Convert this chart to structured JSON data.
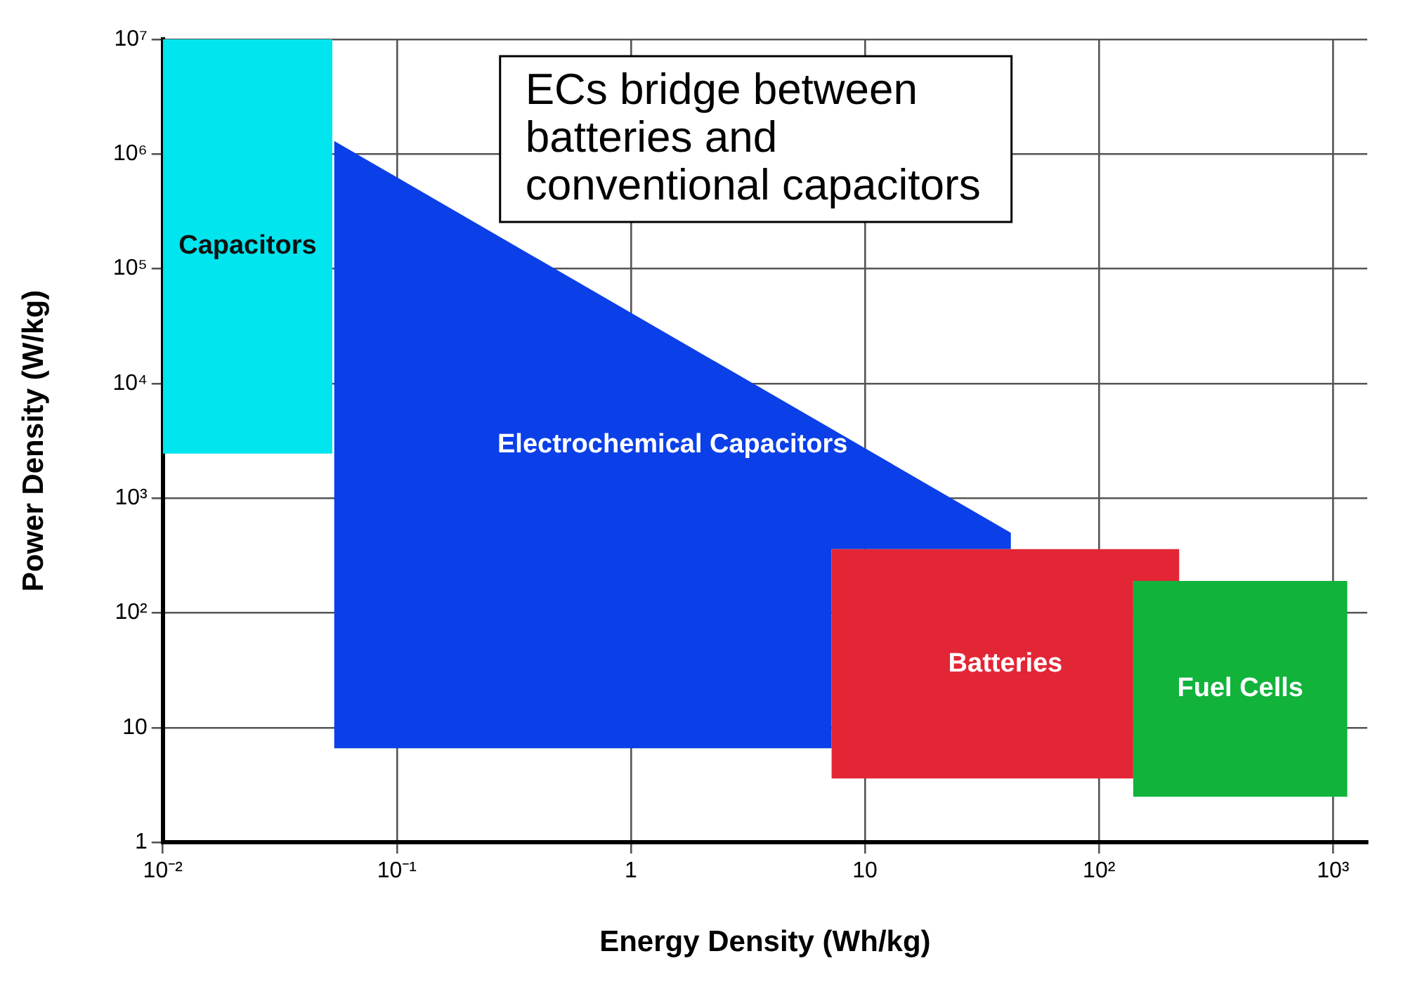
{
  "chart_data": {
    "type": "area",
    "xlabel": "Energy Density (Wh/kg)",
    "ylabel": "Power Density (W/kg)",
    "log": "xy",
    "grid": true,
    "legend": false,
    "xlim": [
      0.01,
      1400
    ],
    "ylim": [
      1,
      10000000
    ],
    "xticks": [
      {
        "value": 0.01,
        "label": "10⁻²"
      },
      {
        "value": 0.1,
        "label": "10⁻¹"
      },
      1,
      10,
      {
        "value": 100,
        "label": "10²"
      },
      {
        "value": 1000,
        "label": "10³"
      }
    ],
    "yticks": [
      1,
      10,
      {
        "value": 100,
        "label": "10²"
      },
      {
        "value": 1000,
        "label": "10³"
      },
      {
        "value": 10000,
        "label": "10⁴"
      },
      {
        "value": 100000,
        "label": "10⁵"
      },
      {
        "value": 1000000,
        "label": "10⁶"
      },
      {
        "value": 10000000,
        "label": "10⁷"
      }
    ],
    "annotations": [
      "ECs bridge between batteries and conventional capacitors"
    ],
    "series": [
      {
        "name": "Capacitors",
        "color": "#00e5ee",
        "x": [
          0.01,
          0.053,
          0.053,
          0.01
        ],
        "values": [
          10000000,
          10000000,
          2450,
          2450
        ]
      },
      {
        "name": "Electrochemical Capacitors",
        "color": "#0b3fe8",
        "x": [
          0.054,
          42,
          42,
          7.2,
          7.2,
          0.054
        ],
        "values": [
          1300000,
          500,
          360,
          360,
          6.6,
          6.6
        ]
      },
      {
        "name": "Batteries",
        "color": "#e32636",
        "x": [
          7.2,
          220,
          220,
          140,
          140,
          7.2
        ],
        "values": [
          360,
          360,
          190,
          190,
          3.6,
          3.6
        ]
      },
      {
        "name": "Fuel Cells",
        "color": "#11b33b",
        "x": [
          140,
          1150,
          1150,
          140
        ],
        "values": [
          190,
          190,
          2.5,
          2.5
        ]
      }
    ]
  }
}
